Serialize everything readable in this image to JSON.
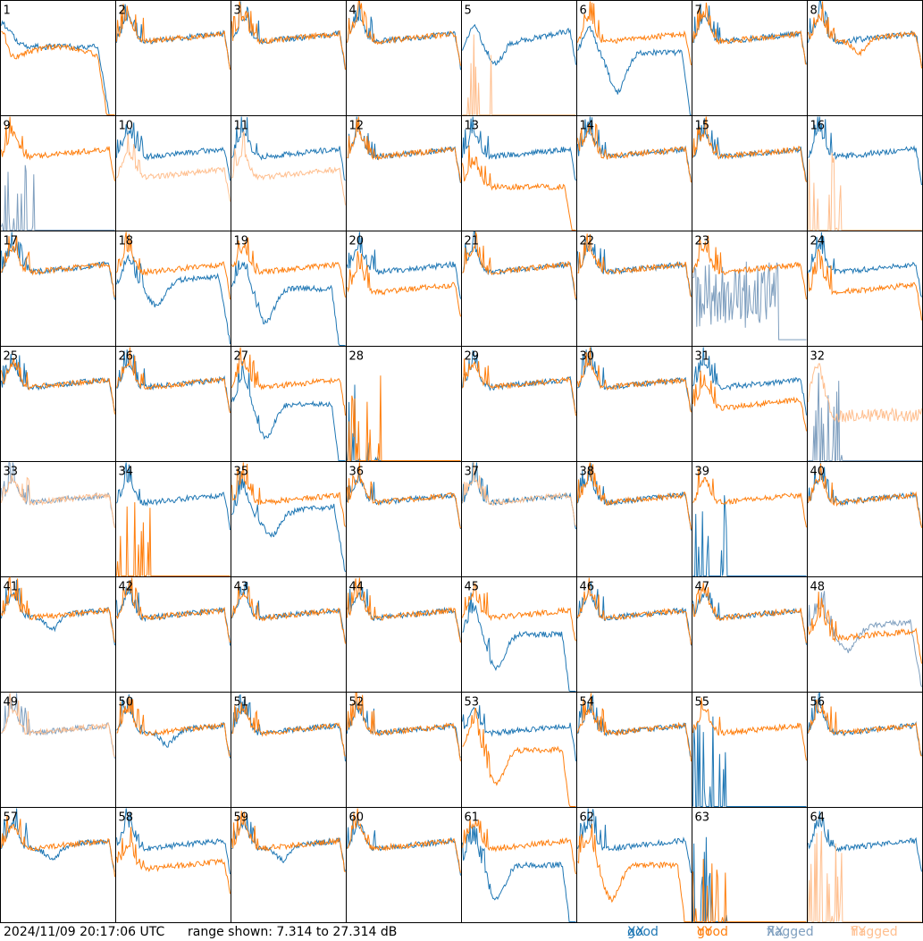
{
  "footer": {
    "timestamp": "2024/11/09 20:17:06 UTC",
    "range_text": "range shown: 7.314 to 27.314 dB"
  },
  "legend": {
    "good_xx": {
      "word": "good",
      "pol": "XX",
      "color": "#1f77b4"
    },
    "good_yy": {
      "word": "good",
      "pol": "YY",
      "color": "#ff7f0e"
    },
    "flagged_xx": {
      "word": "flagged",
      "pol": "XX",
      "color": "#7f9fbf"
    },
    "flagged_yy": {
      "word": "flagged",
      "pol": "YY",
      "color": "#ffbf8f"
    }
  },
  "chart_data": {
    "type": "line",
    "layout": "8x8 small multiples",
    "yrange_db": [
      7.314,
      27.314
    ],
    "x_axis": "frequency channel (unlabeled)",
    "tiles": [
      {
        "id": 1,
        "xx": "hump-drop",
        "yy": "early-dip",
        "xx_flag": false,
        "yy_flag": false
      },
      {
        "id": 2,
        "xx": "flat",
        "yy": "flat",
        "xx_flag": false,
        "yy_flag": false
      },
      {
        "id": 3,
        "xx": "flat",
        "yy": "flat",
        "xx_flag": false,
        "yy_flag": false
      },
      {
        "id": 4,
        "xx": "flat",
        "yy": "flat",
        "xx_flag": false,
        "yy_flag": false
      },
      {
        "id": 5,
        "xx": "dip-rise",
        "yy": "dead",
        "xx_flag": false,
        "yy_flag": true
      },
      {
        "id": 6,
        "xx": "deep-dip",
        "yy": "flat",
        "xx_flag": false,
        "yy_flag": false
      },
      {
        "id": 7,
        "xx": "flat",
        "yy": "flat",
        "xx_flag": false,
        "yy_flag": false
      },
      {
        "id": 8,
        "xx": "flat",
        "yy": "dip",
        "xx_flag": false,
        "yy_flag": false
      },
      {
        "id": 9,
        "xx": "dead",
        "yy": "flat",
        "xx_flag": true,
        "yy_flag": false
      },
      {
        "id": 10,
        "xx": "flat",
        "yy": "low",
        "xx_flag": false,
        "yy_flag": true
      },
      {
        "id": 11,
        "xx": "flat",
        "yy": "low",
        "xx_flag": false,
        "yy_flag": true
      },
      {
        "id": 12,
        "xx": "flat",
        "yy": "flat",
        "xx_flag": false,
        "yy_flag": false
      },
      {
        "id": 13,
        "xx": "flat",
        "yy": "low-drop",
        "xx_flag": false,
        "yy_flag": false
      },
      {
        "id": 14,
        "xx": "flat",
        "yy": "flat",
        "xx_flag": false,
        "yy_flag": false
      },
      {
        "id": 15,
        "xx": "flat",
        "yy": "flat",
        "xx_flag": false,
        "yy_flag": false
      },
      {
        "id": 16,
        "xx": "flat",
        "yy": "dead",
        "xx_flag": false,
        "yy_flag": true
      },
      {
        "id": 17,
        "xx": "flat",
        "yy": "flat",
        "xx_flag": false,
        "yy_flag": false
      },
      {
        "id": 18,
        "xx": "dip-drop",
        "yy": "flat",
        "xx_flag": false,
        "yy_flag": false
      },
      {
        "id": 19,
        "xx": "deep-dip-drop",
        "yy": "flat",
        "xx_flag": false,
        "yy_flag": false
      },
      {
        "id": 20,
        "xx": "flat",
        "yy": "low",
        "xx_flag": false,
        "yy_flag": false
      },
      {
        "id": 21,
        "xx": "flat",
        "yy": "flat",
        "xx_flag": false,
        "yy_flag": false
      },
      {
        "id": 22,
        "xx": "flat",
        "yy": "flat",
        "xx_flag": false,
        "yy_flag": false
      },
      {
        "id": 23,
        "xx": "noise",
        "yy": "flat",
        "xx_flag": true,
        "yy_flag": false
      },
      {
        "id": 24,
        "xx": "flat",
        "yy": "low",
        "xx_flag": false,
        "yy_flag": false
      },
      {
        "id": 25,
        "xx": "flat",
        "yy": "flat",
        "xx_flag": false,
        "yy_flag": false
      },
      {
        "id": 26,
        "xx": "flat",
        "yy": "flat",
        "xx_flag": false,
        "yy_flag": false
      },
      {
        "id": 27,
        "xx": "deep-dip-drop",
        "yy": "flat",
        "xx_flag": false,
        "yy_flag": false
      },
      {
        "id": 28,
        "xx": "dead",
        "yy": "dead",
        "xx_flag": false,
        "yy_flag": false
      },
      {
        "id": 29,
        "xx": "flat",
        "yy": "flat",
        "xx_flag": false,
        "yy_flag": false
      },
      {
        "id": 30,
        "xx": "flat",
        "yy": "flat",
        "xx_flag": false,
        "yy_flag": false
      },
      {
        "id": 31,
        "xx": "flat",
        "yy": "low",
        "xx_flag": false,
        "yy_flag": false
      },
      {
        "id": 32,
        "xx": "dead",
        "yy": "noisy",
        "xx_flag": true,
        "yy_flag": true
      },
      {
        "id": 33,
        "xx": "flat",
        "yy": "flat",
        "xx_flag": true,
        "yy_flag": true
      },
      {
        "id": 34,
        "xx": "flat",
        "yy": "dead",
        "xx_flag": false,
        "yy_flag": false
      },
      {
        "id": 35,
        "xx": "dip-drop",
        "yy": "flat",
        "xx_flag": false,
        "yy_flag": false
      },
      {
        "id": 36,
        "xx": "flat",
        "yy": "flat",
        "xx_flag": false,
        "yy_flag": false
      },
      {
        "id": 37,
        "xx": "flat",
        "yy": "flat",
        "xx_flag": false,
        "yy_flag": true
      },
      {
        "id": 38,
        "xx": "flat",
        "yy": "flat",
        "xx_flag": false,
        "yy_flag": false
      },
      {
        "id": 39,
        "xx": "dead",
        "yy": "flat",
        "xx_flag": false,
        "yy_flag": false
      },
      {
        "id": 40,
        "xx": "flat",
        "yy": "flat",
        "xx_flag": false,
        "yy_flag": false
      },
      {
        "id": 41,
        "xx": "dip",
        "yy": "flat",
        "xx_flag": false,
        "yy_flag": false
      },
      {
        "id": 42,
        "xx": "flat",
        "yy": "flat",
        "xx_flag": false,
        "yy_flag": false
      },
      {
        "id": 43,
        "xx": "flat",
        "yy": "flat",
        "xx_flag": false,
        "yy_flag": false
      },
      {
        "id": 44,
        "xx": "flat",
        "yy": "flat",
        "xx_flag": false,
        "yy_flag": false
      },
      {
        "id": 45,
        "xx": "deep-dip-drop",
        "yy": "flat",
        "xx_flag": false,
        "yy_flag": false
      },
      {
        "id": 46,
        "xx": "flat",
        "yy": "flat",
        "xx_flag": false,
        "yy_flag": false
      },
      {
        "id": 47,
        "xx": "flat",
        "yy": "flat",
        "xx_flag": false,
        "yy_flag": false
      },
      {
        "id": 48,
        "xx": "dip-drop",
        "yy": "low",
        "xx_flag": true,
        "yy_flag": false
      },
      {
        "id": 49,
        "xx": "flat",
        "yy": "flat",
        "xx_flag": true,
        "yy_flag": true
      },
      {
        "id": 50,
        "xx": "dip",
        "yy": "flat",
        "xx_flag": false,
        "yy_flag": false
      },
      {
        "id": 51,
        "xx": "flat",
        "yy": "flat",
        "xx_flag": false,
        "yy_flag": false
      },
      {
        "id": 52,
        "xx": "flat",
        "yy": "flat",
        "xx_flag": false,
        "yy_flag": false
      },
      {
        "id": 53,
        "xx": "flat",
        "yy": "deep-dip-drop",
        "xx_flag": false,
        "yy_flag": false
      },
      {
        "id": 54,
        "xx": "flat",
        "yy": "flat",
        "xx_flag": false,
        "yy_flag": false
      },
      {
        "id": 55,
        "xx": "dead",
        "yy": "flat",
        "xx_flag": false,
        "yy_flag": false
      },
      {
        "id": 56,
        "xx": "flat",
        "yy": "flat",
        "xx_flag": false,
        "yy_flag": false
      },
      {
        "id": 57,
        "xx": "dip",
        "yy": "flat",
        "xx_flag": false,
        "yy_flag": false
      },
      {
        "id": 58,
        "xx": "flat",
        "yy": "low",
        "xx_flag": false,
        "yy_flag": false
      },
      {
        "id": 59,
        "xx": "dip",
        "yy": "flat",
        "xx_flag": false,
        "yy_flag": false
      },
      {
        "id": 60,
        "xx": "flat",
        "yy": "flat",
        "xx_flag": false,
        "yy_flag": false
      },
      {
        "id": 61,
        "xx": "deep-dip-drop",
        "yy": "flat",
        "xx_flag": false,
        "yy_flag": false
      },
      {
        "id": 62,
        "xx": "flat",
        "yy": "deep-dip-drop",
        "xx_flag": false,
        "yy_flag": false
      },
      {
        "id": 63,
        "xx": "dead",
        "yy": "dead",
        "xx_flag": false,
        "yy_flag": false
      },
      {
        "id": 64,
        "xx": "flat",
        "yy": "dead",
        "xx_flag": false,
        "yy_flag": true
      }
    ]
  }
}
